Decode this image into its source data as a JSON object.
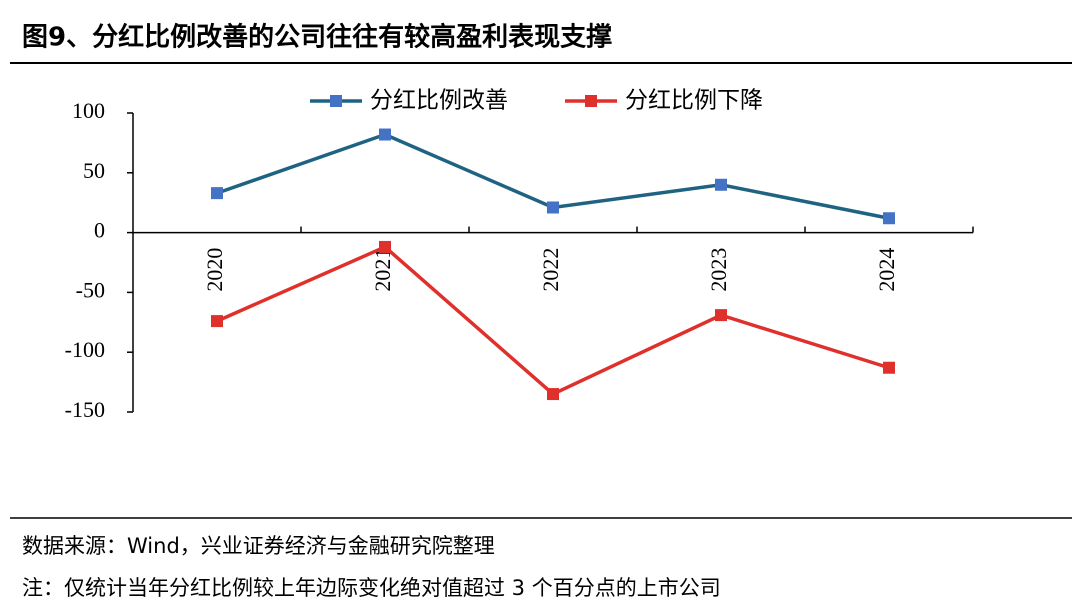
{
  "chart_data": {
    "type": "line",
    "title": "图9、分红比例改善的公司往往有较高盈利表现支撑",
    "categories": [
      "2020",
      "2021",
      "2022",
      "2023",
      "2024"
    ],
    "series": [
      {
        "name": "分红比例改善",
        "color": "#1f6382",
        "marker_color": "#4472c4",
        "values": [
          33,
          82,
          21,
          40,
          12
        ]
      },
      {
        "name": "分红比例下降",
        "color": "#e0302b",
        "marker_color": "#e0302b",
        "values": [
          -74,
          -12,
          -135,
          -69,
          -113
        ]
      }
    ],
    "ylim": [
      -150,
      100
    ],
    "yticks": [
      -150,
      -100,
      -50,
      0,
      50,
      100
    ],
    "grid": false,
    "legend": "top",
    "source": "数据来源：Wind，兴业证券经济与金融研究院整理",
    "note": "注：仅统计当年分红比例较上年边际变化绝对值超过 3 个百分点的上市公司"
  }
}
